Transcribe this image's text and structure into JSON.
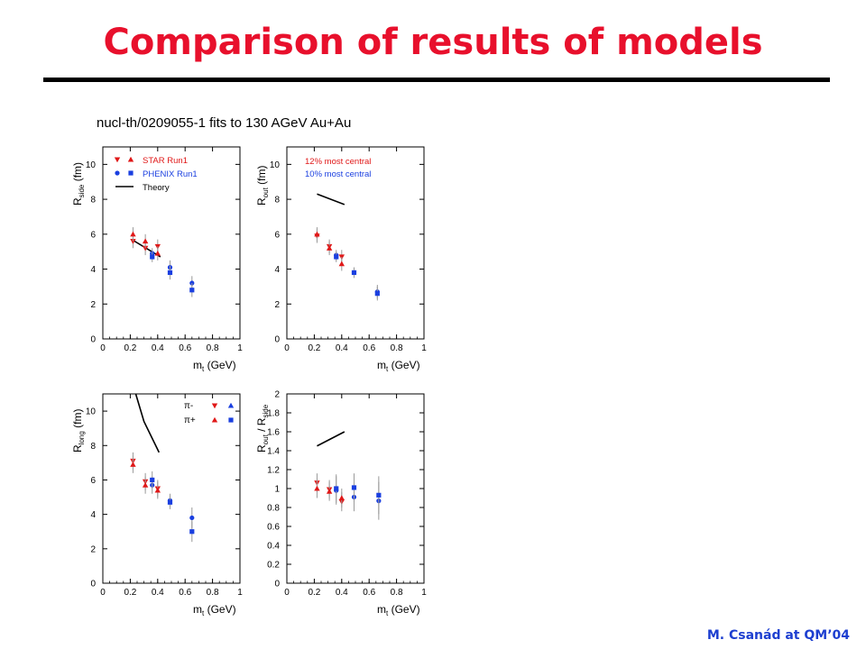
{
  "slide": {
    "title": "Comparison of results of models",
    "subtitle": "nucl-th/0209055-1 fits to 130 AGeV Au+Au",
    "footer": "M. Csanád at QM’04"
  },
  "colors": {
    "title": "#e8102c",
    "footer": "#1d3fd0",
    "star": "#e01818",
    "phenix": "#1a3fe0",
    "theory": "#000000",
    "errorbar": "#999999"
  },
  "chart_data": [
    {
      "type": "scatter",
      "panel": "top-left",
      "xlabel_main": "m",
      "xlabel_sub": "t",
      "xlabel_unit": " (GeV)",
      "ylabel_main": "R",
      "ylabel_sub": "side",
      "ylabel_unit": " (fm)",
      "xlim": [
        0,
        1
      ],
      "ylim": [
        0,
        11
      ],
      "xticks": [
        0,
        0.2,
        0.4,
        0.6,
        0.8,
        1
      ],
      "xticklabels": [
        "0",
        "0.2",
        "0.4",
        "0.6",
        "0.8",
        "1"
      ],
      "yticks": [
        0,
        2,
        4,
        6,
        8,
        10
      ],
      "yticklabels": [
        "0",
        "2",
        "4",
        "6",
        "8",
        "10"
      ],
      "legend": {
        "placement": "top-left",
        "entries": [
          {
            "label": "STAR Run1",
            "color": "#e01818",
            "symbols": [
              "tri-down",
              "tri-up"
            ]
          },
          {
            "label": "PHENIX Run1",
            "color": "#1a3fe0",
            "symbols": [
              "circle",
              "square"
            ]
          },
          {
            "label": "Theory",
            "color": "#000000",
            "symbols": [
              "line"
            ]
          }
        ]
      },
      "series": [
        {
          "name": "STAR pi-",
          "color": "#e01818",
          "marker": "tri-down",
          "points": [
            [
              0.22,
              5.6,
              0.4
            ],
            [
              0.31,
              5.2,
              0.4
            ],
            [
              0.4,
              5.3,
              0.4
            ]
          ]
        },
        {
          "name": "STAR pi+",
          "color": "#e01818",
          "marker": "tri-up",
          "points": [
            [
              0.22,
              6.0,
              0.4
            ],
            [
              0.31,
              5.6,
              0.4
            ],
            [
              0.4,
              4.9,
              0.4
            ]
          ]
        },
        {
          "name": "PHENIX pi-",
          "color": "#1a3fe0",
          "marker": "circle",
          "points": [
            [
              0.36,
              4.9,
              0.3
            ],
            [
              0.49,
              4.1,
              0.4
            ],
            [
              0.65,
              3.2,
              0.4
            ]
          ]
        },
        {
          "name": "PHENIX pi+",
          "color": "#1a3fe0",
          "marker": "square",
          "points": [
            [
              0.36,
              4.7,
              0.3
            ],
            [
              0.49,
              3.8,
              0.4
            ],
            [
              0.65,
              2.8,
              0.4
            ]
          ]
        }
      ],
      "theory_line": [
        [
          0.21,
          5.7
        ],
        [
          0.42,
          4.7
        ]
      ]
    },
    {
      "type": "scatter",
      "panel": "top-right",
      "xlabel_main": "m",
      "xlabel_sub": "t",
      "xlabel_unit": " (GeV)",
      "ylabel_main": "R",
      "ylabel_sub": "out",
      "ylabel_unit": " (fm)",
      "xlim": [
        0,
        1
      ],
      "ylim": [
        0,
        11
      ],
      "xticks": [
        0,
        0.2,
        0.4,
        0.6,
        0.8,
        1
      ],
      "xticklabels": [
        "0",
        "0.2",
        "0.4",
        "0.6",
        "0.8",
        "1"
      ],
      "yticks": [
        0,
        2,
        4,
        6,
        8,
        10
      ],
      "yticklabels": [
        "0",
        "2",
        "4",
        "6",
        "8",
        "10"
      ],
      "annotations": [
        {
          "text": "12% most central",
          "color": "#e01818"
        },
        {
          "text": "10% most central",
          "color": "#1a3fe0"
        }
      ],
      "series": [
        {
          "name": "STAR pi-",
          "color": "#e01818",
          "marker": "tri-down",
          "points": [
            [
              0.22,
              5.9,
              0.4
            ],
            [
              0.31,
              5.3,
              0.4
            ],
            [
              0.4,
              4.7,
              0.4
            ]
          ]
        },
        {
          "name": "STAR pi+",
          "color": "#e01818",
          "marker": "tri-up",
          "points": [
            [
              0.22,
              6.0,
              0.4
            ],
            [
              0.31,
              5.2,
              0.4
            ],
            [
              0.4,
              4.3,
              0.4
            ]
          ]
        },
        {
          "name": "PHENIX pi-",
          "color": "#1a3fe0",
          "marker": "circle",
          "points": [
            [
              0.36,
              4.8,
              0.3
            ],
            [
              0.49,
              3.8,
              0.3
            ],
            [
              0.66,
              2.7,
              0.4
            ]
          ]
        },
        {
          "name": "PHENIX pi+",
          "color": "#1a3fe0",
          "marker": "square",
          "points": [
            [
              0.36,
              4.7,
              0.3
            ],
            [
              0.49,
              3.8,
              0.3
            ],
            [
              0.66,
              2.6,
              0.4
            ]
          ]
        }
      ],
      "theory_line": [
        [
          0.22,
          8.3
        ],
        [
          0.42,
          7.7
        ]
      ]
    },
    {
      "type": "scatter",
      "panel": "bottom-left",
      "xlabel_main": "m",
      "xlabel_sub": "t",
      "xlabel_unit": " (GeV)",
      "ylabel_main": "R",
      "ylabel_sub": "long",
      "ylabel_unit": " (fm)",
      "xlim": [
        0,
        1
      ],
      "ylim": [
        0,
        11
      ],
      "xticks": [
        0,
        0.2,
        0.4,
        0.6,
        0.8,
        1
      ],
      "xticklabels": [
        "0",
        "0.2",
        "0.4",
        "0.6",
        "0.8",
        "1"
      ],
      "yticks": [
        0,
        2,
        4,
        6,
        8,
        10
      ],
      "yticklabels": [
        "0",
        "2",
        "4",
        "6",
        "8",
        "10"
      ],
      "legend": {
        "placement": "top-right",
        "entries": [
          {
            "label": "π-",
            "symbols": [
              [
                "tri-down",
                "#e01818"
              ],
              [
                "tri-up",
                "#1a3fe0"
              ]
            ]
          },
          {
            "label": "π+",
            "symbols": [
              [
                "tri-up",
                "#e01818"
              ],
              [
                "square",
                "#1a3fe0"
              ]
            ]
          }
        ]
      },
      "series": [
        {
          "name": "STAR pi-",
          "color": "#e01818",
          "marker": "tri-down",
          "points": [
            [
              0.22,
              7.1,
              0.5
            ],
            [
              0.31,
              5.9,
              0.5
            ],
            [
              0.4,
              5.5,
              0.5
            ]
          ]
        },
        {
          "name": "STAR pi+",
          "color": "#e01818",
          "marker": "tri-up",
          "points": [
            [
              0.22,
              6.9,
              0.5
            ],
            [
              0.31,
              5.7,
              0.5
            ],
            [
              0.4,
              5.4,
              0.5
            ]
          ]
        },
        {
          "name": "PHENIX pi-",
          "color": "#1a3fe0",
          "marker": "circle",
          "points": [
            [
              0.36,
              5.7,
              0.5
            ],
            [
              0.49,
              4.8,
              0.4
            ],
            [
              0.65,
              3.8,
              0.6
            ]
          ]
        },
        {
          "name": "PHENIX pi+",
          "color": "#1a3fe0",
          "marker": "square",
          "points": [
            [
              0.36,
              6.0,
              0.5
            ],
            [
              0.49,
              4.7,
              0.4
            ],
            [
              0.65,
              3.0,
              0.6
            ]
          ]
        }
      ],
      "theory_line": [
        [
          0.24,
          11.0
        ],
        [
          0.3,
          9.4
        ],
        [
          0.41,
          7.6
        ]
      ]
    },
    {
      "type": "scatter",
      "panel": "bottom-right",
      "xlabel_main": "m",
      "xlabel_sub": "t",
      "xlabel_unit": " (GeV)",
      "ylabel_main": "R",
      "ylabel_sub": "out",
      "ylabel_unit": " / R",
      "ylabel_sub2": "side",
      "xlim": [
        0,
        1
      ],
      "ylim": [
        0,
        2
      ],
      "xticks": [
        0,
        0.2,
        0.4,
        0.6,
        0.8,
        1
      ],
      "xticklabels": [
        "0",
        "0.2",
        "0.4",
        "0.6",
        "0.8",
        "1"
      ],
      "yticks": [
        0,
        0.2,
        0.4,
        0.6,
        0.8,
        1,
        1.2,
        1.4,
        1.6,
        1.8,
        2
      ],
      "yticklabels": [
        "0",
        "0.2",
        "0.4",
        "0.6",
        "0.8",
        "1",
        "1.2",
        "1.4",
        "1.6",
        "1.8",
        "2"
      ],
      "series": [
        {
          "name": "STAR pi-",
          "color": "#e01818",
          "marker": "tri-down",
          "points": [
            [
              0.22,
              1.06,
              0.1
            ],
            [
              0.31,
              0.99,
              0.1
            ],
            [
              0.4,
              0.86,
              0.1
            ]
          ]
        },
        {
          "name": "STAR pi+",
          "color": "#e01818",
          "marker": "tri-up",
          "points": [
            [
              0.22,
              1.0,
              0.1
            ],
            [
              0.31,
              0.97,
              0.1
            ],
            [
              0.4,
              0.9,
              0.1
            ]
          ]
        },
        {
          "name": "PHENIX pi-",
          "color": "#1a3fe0",
          "marker": "circle",
          "points": [
            [
              0.36,
              0.98,
              0.15
            ],
            [
              0.49,
              0.91,
              0.15
            ],
            [
              0.67,
              0.87,
              0.2
            ]
          ]
        },
        {
          "name": "PHENIX pi+",
          "color": "#1a3fe0",
          "marker": "square",
          "points": [
            [
              0.36,
              1.0,
              0.15
            ],
            [
              0.49,
              1.01,
              0.15
            ],
            [
              0.67,
              0.93,
              0.2
            ]
          ]
        }
      ],
      "theory_line": [
        [
          0.22,
          1.45
        ],
        [
          0.42,
          1.6
        ]
      ]
    }
  ]
}
